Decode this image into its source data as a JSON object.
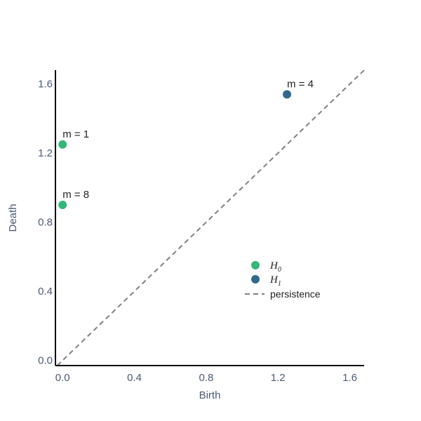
{
  "chart_data": {
    "type": "scatter",
    "title": "",
    "xlabel": "Birth",
    "ylabel": "Death",
    "xlim": [
      -0.04,
      1.68
    ],
    "ylim": [
      -0.03,
      1.68
    ],
    "xticks": [
      0.0,
      0.4,
      0.8,
      1.2,
      1.6
    ],
    "xtick_labels": [
      "0.0",
      "0.4",
      "0.8",
      "1.2",
      "1.6"
    ],
    "yticks": [
      0.0,
      0.4,
      0.8,
      1.2,
      1.6
    ],
    "ytick_labels": [
      "0.0",
      "0.4",
      "0.8",
      "1.2",
      "1.6"
    ],
    "grid": false,
    "legend_position": "center-right",
    "series": [
      {
        "name": "H0",
        "legend_base": "H",
        "legend_sub": "0",
        "color": "#35b779",
        "points": [
          {
            "x": 0.0,
            "y": 1.25,
            "label": "m = 1"
          },
          {
            "x": 0.0,
            "y": 0.9,
            "label": "m = 8"
          }
        ]
      },
      {
        "name": "H1",
        "legend_base": "H",
        "legend_sub": "1",
        "color": "#31688e",
        "points": [
          {
            "x": 1.25,
            "y": 1.54,
            "label": "m = 4"
          }
        ]
      }
    ],
    "diagonal": {
      "name": "persistence",
      "style": "dashed",
      "color": "#808080"
    }
  }
}
